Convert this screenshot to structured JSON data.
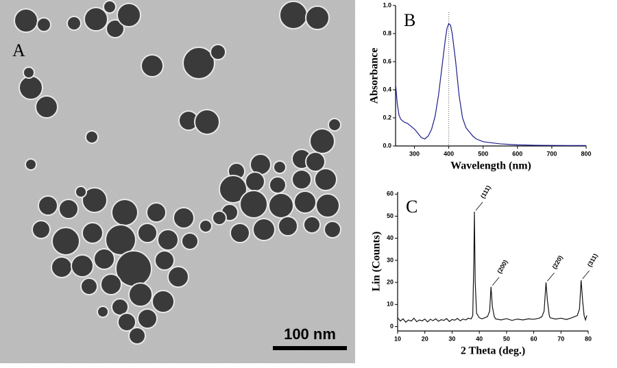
{
  "image": {
    "label": "A",
    "scale_bar": "100 nm"
  },
  "chart_data": [
    {
      "type": "line",
      "panel": "B",
      "x_label": "Wavelength (nm)",
      "y_label": "Absorbance",
      "xlim": [
        245,
        800
      ],
      "xticks": [
        300,
        400,
        500,
        600,
        700,
        800
      ],
      "ylim": [
        0,
        1
      ],
      "yticks": [
        {
          "value": 0,
          "label": "0.0"
        },
        0.2,
        0.4,
        0.6,
        0.8,
        {
          "value": 1,
          "label": "1.0"
        }
      ],
      "vline": 400,
      "color": "#1c1c8c",
      "x": [
        245,
        250,
        255,
        260,
        270,
        280,
        290,
        300,
        310,
        320,
        330,
        340,
        350,
        360,
        370,
        380,
        390,
        395,
        400,
        405,
        410,
        420,
        430,
        440,
        450,
        460,
        470,
        480,
        500,
        550,
        600,
        650,
        700,
        750,
        800
      ],
      "values": [
        0.44,
        0.3,
        0.22,
        0.19,
        0.17,
        0.16,
        0.14,
        0.12,
        0.09,
        0.06,
        0.05,
        0.07,
        0.12,
        0.21,
        0.36,
        0.56,
        0.76,
        0.84,
        0.87,
        0.86,
        0.8,
        0.6,
        0.36,
        0.2,
        0.13,
        0.1,
        0.07,
        0.05,
        0.03,
        0.015,
        0.008,
        0.005,
        0.004,
        0.003,
        0.003
      ]
    },
    {
      "type": "line",
      "panel": "C",
      "x_label": "2 Theta (deg.)",
      "y_label": "Lin (Counts)",
      "xlim": [
        10,
        80
      ],
      "xticks": [
        10,
        20,
        30,
        40,
        50,
        60,
        70,
        80
      ],
      "ylim": [
        -2,
        61
      ],
      "yticks": [
        0,
        10,
        20,
        30,
        40,
        50,
        60
      ],
      "color": "#111111",
      "x": [
        10,
        11,
        12,
        13,
        14,
        15,
        16,
        17,
        18,
        19,
        20,
        21,
        22,
        23,
        24,
        25,
        26,
        27,
        28,
        29,
        30,
        31,
        32,
        33,
        34,
        35,
        36,
        37,
        37.6,
        38,
        38.2,
        38.5,
        39,
        40,
        41,
        42,
        43,
        43.8,
        44.3,
        44.8,
        45.5,
        46,
        48,
        50,
        52,
        54,
        56,
        58,
        60,
        62,
        63,
        63.8,
        64.5,
        65,
        65.7,
        66,
        68,
        70,
        72,
        74,
        75,
        76,
        76.8,
        77.4,
        78,
        78.5,
        79,
        79.5
      ],
      "values": [
        4,
        2.5,
        3.5,
        2,
        3,
        2.5,
        3.8,
        2.2,
        3,
        2.6,
        3.4,
        2.1,
        3.3,
        2.7,
        3.5,
        2.4,
        3.1,
        2.8,
        3.6,
        2.3,
        3.2,
        2.9,
        3.7,
        2.6,
        3.4,
        3,
        3.8,
        3.5,
        5,
        30,
        52,
        20,
        6,
        4,
        3.5,
        4,
        4.5,
        7,
        18,
        9,
        4.5,
        3.5,
        3,
        3.6,
        2.8,
        3.4,
        3,
        3.5,
        3.3,
        3.8,
        4.5,
        7,
        20,
        12,
        5,
        4,
        3.4,
        3.8,
        3.2,
        4,
        4.5,
        5,
        8,
        21,
        11,
        5,
        3,
        5
      ],
      "annotations": [
        {
          "text": "(111)",
          "x": 38.2
        },
        {
          "text": "(200)",
          "x": 44.3
        },
        {
          "text": "(220)",
          "x": 64.5
        },
        {
          "text": "(311)",
          "x": 77.4
        }
      ]
    }
  ]
}
